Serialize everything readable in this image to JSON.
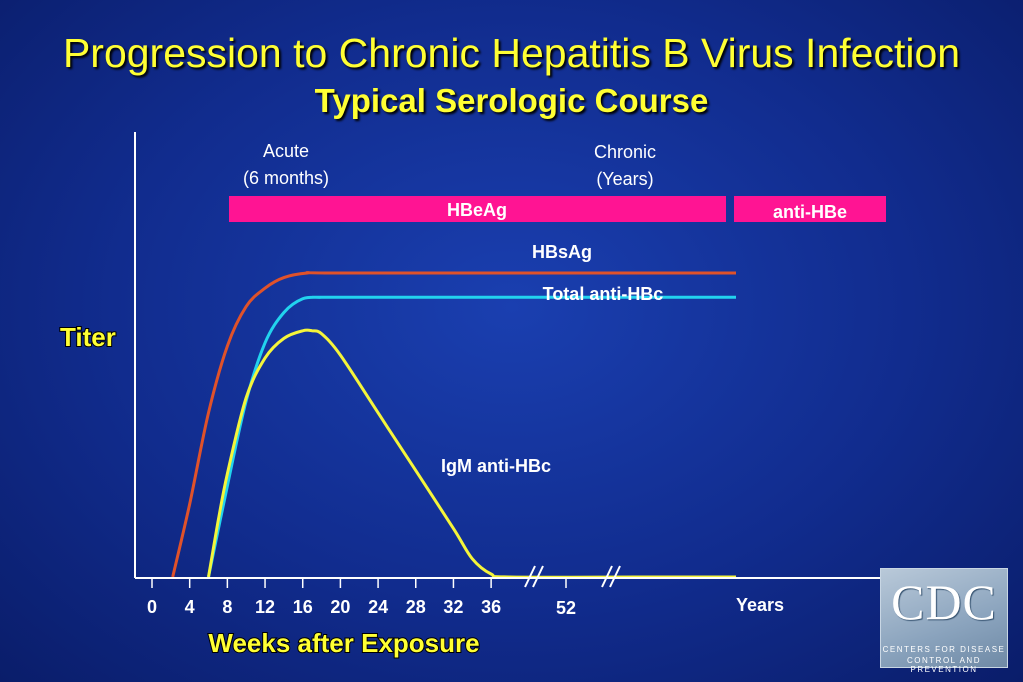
{
  "header": {
    "title": "Progression to Chronic Hepatitis B Virus Infection",
    "subtitle": "Typical Serologic Course"
  },
  "chart_data": {
    "type": "line",
    "title": "Progression to Chronic Hepatitis B Virus Infection",
    "subtitle": "Typical Serologic Course",
    "xlabel": "Weeks after Exposure",
    "ylabel": "Titer",
    "x_ticks": [
      "0",
      "4",
      "8",
      "12",
      "16",
      "20",
      "24",
      "28",
      "32",
      "36",
      "52"
    ],
    "x_end_label": "Years",
    "x_axis_breaks": 2,
    "grid": false,
    "phases": [
      {
        "label": "Acute",
        "sublabel": "(6 months)"
      },
      {
        "label": "Chronic",
        "sublabel": "(Years)"
      }
    ],
    "bars": [
      {
        "label": "HBeAg",
        "color": "#ff1493"
      },
      {
        "label": "anti-HBe",
        "color": "#ff1493"
      }
    ],
    "series": [
      {
        "name": "HBsAg",
        "color": "#e0522a",
        "points": [
          [
            2.2,
            0
          ],
          [
            4,
            24
          ],
          [
            6,
            54
          ],
          [
            8,
            76
          ],
          [
            10,
            89
          ],
          [
            12,
            95
          ],
          [
            14,
            98.5
          ],
          [
            16.5,
            100
          ],
          [
            20,
            100
          ],
          [
            52,
            100
          ],
          [
            62,
            100
          ]
        ]
      },
      {
        "name": "Total anti-HBc",
        "color": "#22d3ee",
        "points": [
          [
            6,
            0
          ],
          [
            8,
            30
          ],
          [
            10,
            58
          ],
          [
            12,
            77
          ],
          [
            14,
            87
          ],
          [
            16,
            91.5
          ],
          [
            18,
            92
          ],
          [
            20,
            92
          ],
          [
            52,
            92
          ],
          [
            62,
            92
          ]
        ]
      },
      {
        "name": "IgM anti-HBc",
        "color": "#f5f53a",
        "points": [
          [
            6,
            0
          ],
          [
            7,
            18
          ],
          [
            8,
            34
          ],
          [
            10,
            59
          ],
          [
            12,
            72
          ],
          [
            14,
            78.5
          ],
          [
            16,
            81
          ],
          [
            17,
            81
          ],
          [
            18,
            80
          ],
          [
            20,
            73
          ],
          [
            24,
            54
          ],
          [
            28,
            35
          ],
          [
            32,
            16
          ],
          [
            34,
            6
          ],
          [
            36,
            1
          ],
          [
            38,
            0
          ],
          [
            52,
            0
          ],
          [
            62,
            0
          ]
        ]
      }
    ]
  },
  "logo": {
    "text": "CDC",
    "line1": "CENTERS FOR DISEASE",
    "line2": "CONTROL AND PREVENTION"
  }
}
